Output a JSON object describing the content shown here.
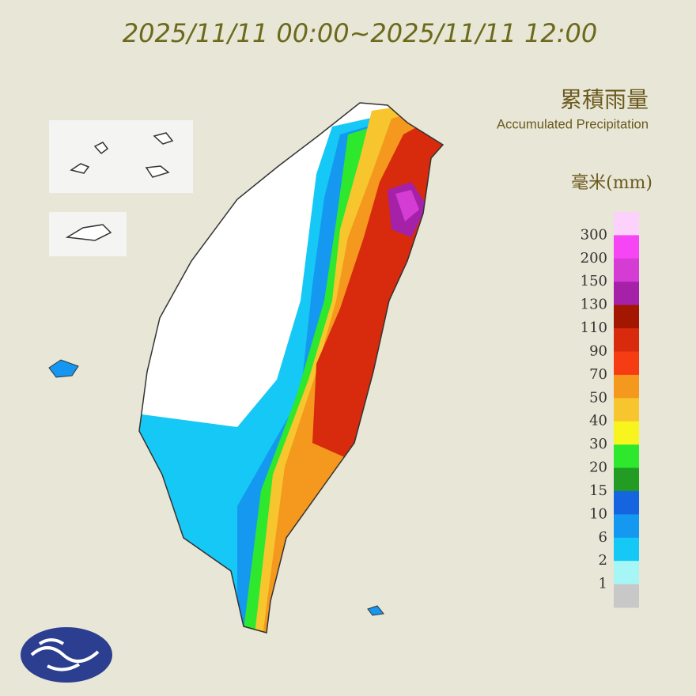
{
  "header": {
    "title": "2025/11/11 00:00~2025/11/11 12:00",
    "name_zh": "累積雨量",
    "name_en": "Accumulated Precipitation"
  },
  "legend": {
    "unit": "毫米(mm)",
    "labels": [
      "300",
      "200",
      "150",
      "130",
      "110",
      "90",
      "70",
      "50",
      "40",
      "30",
      "20",
      "15",
      "10",
      "6",
      "2",
      "1"
    ],
    "colors": [
      "#fcd2fc",
      "#f545f5",
      "#d43cd4",
      "#a521a8",
      "#a31600",
      "#d82a0c",
      "#f63c12",
      "#f5981e",
      "#f7c52e",
      "#f7f41e",
      "#2ee82e",
      "#229c22",
      "#1565e0",
      "#1598f0",
      "#15c8f5",
      "#a6f6f6",
      "#c8c8c8"
    ]
  }
}
